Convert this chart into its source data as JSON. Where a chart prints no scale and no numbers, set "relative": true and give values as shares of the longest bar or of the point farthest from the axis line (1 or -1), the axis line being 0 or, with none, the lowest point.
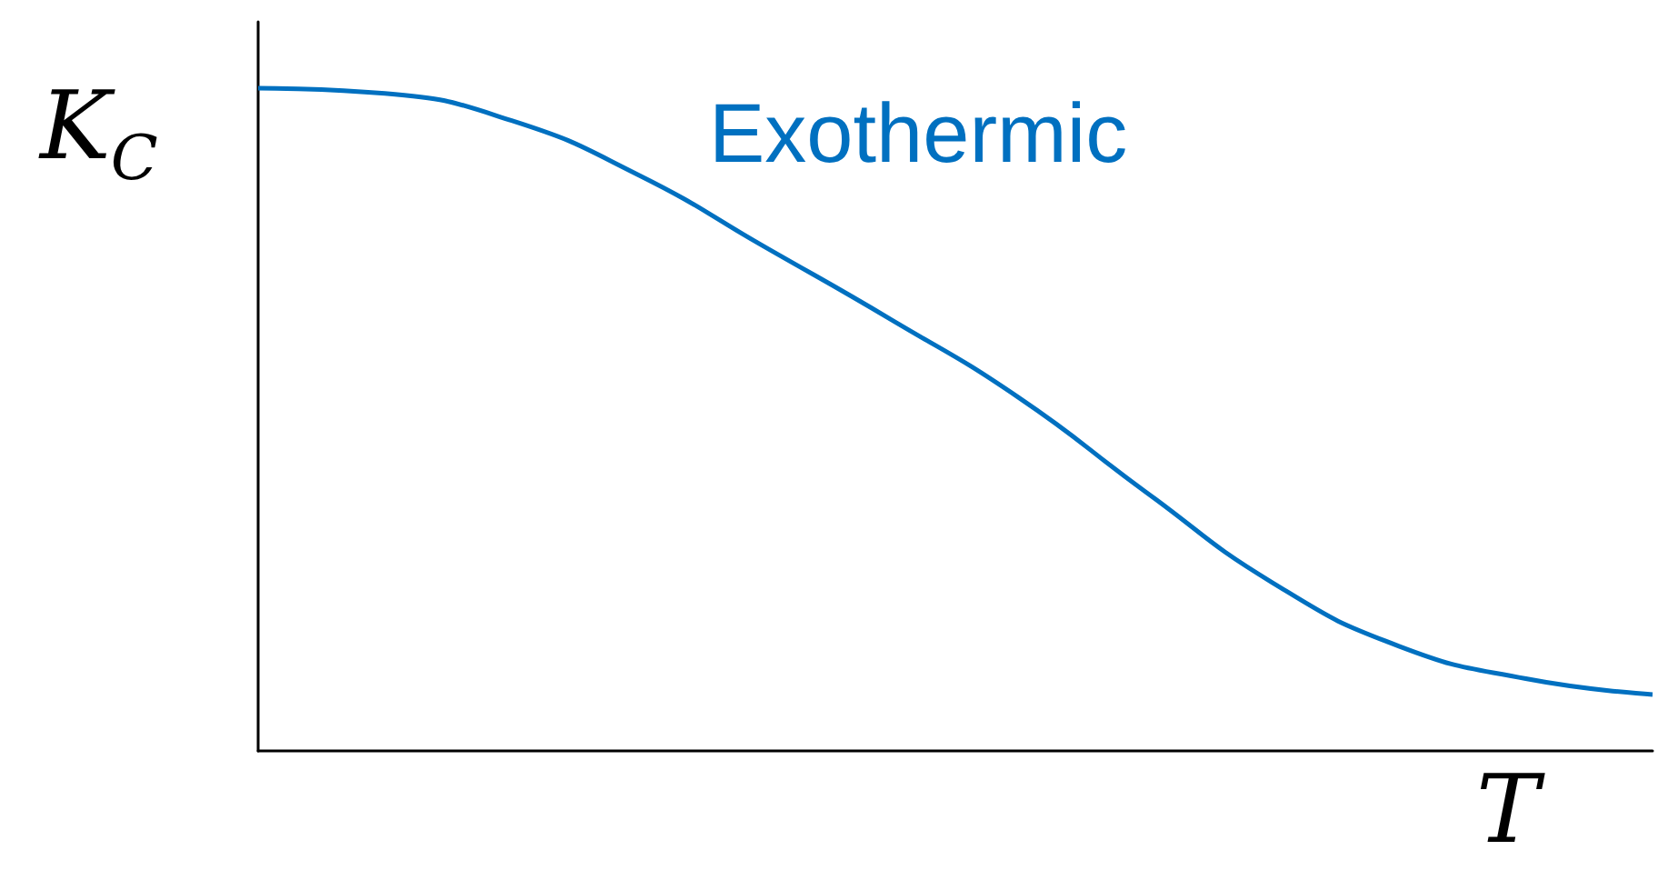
{
  "chart_data": {
    "type": "line",
    "relative": true,
    "xlabel": "T",
    "ylabel": "K$_{C}$",
    "annotations": [
      "Exothermic"
    ],
    "categories": [
      null,
      null,
      null,
      null,
      null,
      null,
      null,
      null,
      null,
      null,
      null,
      null
    ],
    "series": [
      {
        "color": "#0070c0",
        "values": [
          1.0,
          0.992,
          0.951,
          0.869,
          0.76,
          0.65,
          0.533,
          0.391,
          0.254,
          0.158,
          0.109,
          0.085
        ]
      }
    ],
    "marker": "none",
    "grid": false
  }
}
